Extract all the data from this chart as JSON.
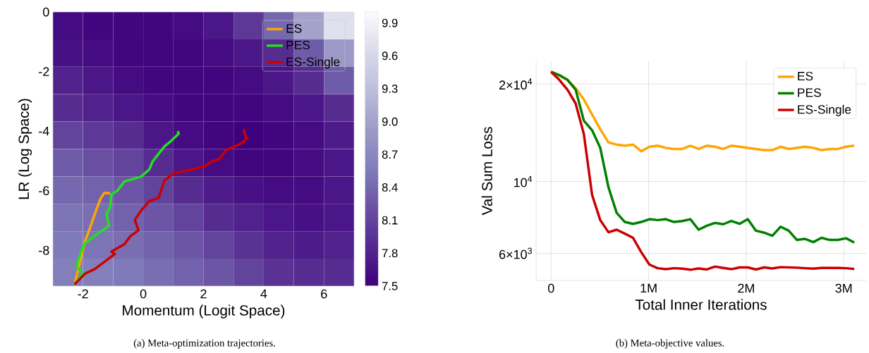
{
  "chart_data": [
    {
      "type": "heatmap",
      "categories": [
        null,
        null,
        null,
        null,
        null,
        null,
        null,
        null,
        null,
        null
      ],
      "y_categories": [
        null,
        null,
        null,
        null,
        null,
        null,
        null,
        null,
        null,
        null
      ],
      "cells": [
        [
          7.6,
          7.55,
          7.55,
          7.55,
          7.6,
          7.7,
          8.0,
          8.4,
          9.0,
          9.7
        ],
        [
          7.65,
          7.6,
          7.55,
          7.55,
          7.55,
          7.6,
          7.7,
          7.9,
          8.3,
          8.9
        ],
        [
          7.8,
          7.7,
          7.6,
          7.55,
          7.55,
          7.55,
          7.6,
          7.7,
          7.9,
          8.3
        ],
        [
          7.9,
          7.8,
          7.7,
          7.6,
          7.55,
          7.55,
          7.55,
          7.6,
          7.7,
          7.9
        ],
        [
          8.1,
          8.0,
          7.9,
          7.7,
          7.6,
          7.55,
          7.5,
          7.55,
          7.6,
          7.75
        ],
        [
          8.3,
          8.2,
          8.1,
          7.9,
          7.7,
          7.6,
          7.55,
          7.55,
          7.6,
          7.7
        ],
        [
          8.4,
          8.35,
          8.25,
          8.1,
          7.9,
          7.75,
          7.65,
          7.6,
          7.6,
          7.7
        ],
        [
          8.5,
          8.45,
          8.35,
          8.25,
          8.1,
          7.9,
          7.8,
          7.7,
          7.65,
          7.7
        ],
        [
          8.55,
          8.5,
          8.45,
          8.35,
          8.25,
          8.1,
          7.95,
          7.8,
          7.75,
          7.8
        ],
        [
          8.6,
          8.6,
          8.55,
          8.45,
          8.35,
          8.25,
          8.1,
          7.95,
          7.9,
          7.9
        ]
      ],
      "clim": [
        7.5,
        10.0
      ],
      "cticks": [
        7.5,
        7.8,
        8.1,
        8.4,
        8.7,
        {
          "value": 9.0,
          "label": "9.0"
        },
        9.3,
        9.6,
        9.9
      ],
      "tick_labels": false
    },
    {
      "type": "line",
      "xlabel": "Momentum (Logit Space)",
      "ylabel": "LR (Log Space)",
      "xlim": [
        -3,
        7
      ],
      "ylim": [
        -9.2,
        0
      ],
      "xticks": [
        -2,
        0,
        2,
        4,
        6
      ],
      "yticks": [
        -8,
        -6,
        -4,
        -2,
        0
      ],
      "series": [
        {
          "name": "ES",
          "color": "#ffa500",
          "x": [
            -2.28,
            -2.12,
            -1.93,
            -1.73,
            -1.57,
            -1.42,
            -1.3,
            -1.1
          ],
          "values": [
            -9.14,
            -8.47,
            -7.69,
            -7.14,
            -6.67,
            -6.27,
            -6.08,
            -6.08
          ]
        },
        {
          "name": "PES",
          "color": "#22e022",
          "x": [
            -2.28,
            -2.0,
            -2.22,
            -2.08,
            -1.97,
            -1.69,
            -1.14,
            -1.22,
            -1.1,
            -1.06,
            -0.86,
            -0.63,
            -0.08,
            0.2,
            0.31,
            0.55,
            0.71,
            0.9,
            1.06,
            1.18,
            1.14
          ],
          "values": [
            -9.14,
            -8.75,
            -8.55,
            -8.08,
            -7.8,
            -7.57,
            -7.18,
            -6.78,
            -6.55,
            -6.12,
            -6.0,
            -5.69,
            -5.53,
            -5.29,
            -5.02,
            -4.71,
            -4.51,
            -4.35,
            -4.2,
            -4.08,
            -4.0
          ]
        },
        {
          "name": "ES-Single",
          "color": "#cc0000",
          "x": [
            -2.28,
            -1.93,
            -1.61,
            -0.94,
            -1.06,
            -0.63,
            -0.43,
            -0.16,
            -0.28,
            -0.04,
            0.2,
            0.51,
            0.71,
            1.02,
            1.42,
            2.04,
            2.28,
            2.52,
            2.75,
            3.14,
            3.34,
            3.42,
            3.34,
            3.38,
            3.46
          ],
          "values": [
            -9.14,
            -8.78,
            -8.63,
            -8.12,
            -8.04,
            -7.8,
            -7.53,
            -7.33,
            -6.98,
            -6.63,
            -6.35,
            -6.24,
            -5.65,
            -5.41,
            -5.33,
            -5.18,
            -5.02,
            -4.94,
            -4.63,
            -4.47,
            -4.35,
            -4.24,
            -3.96,
            -4.12,
            -4.27
          ]
        }
      ],
      "legend": "top right",
      "annotations": [
        "(a) Meta-optimization trajectories."
      ]
    },
    {
      "type": "line",
      "xlabel": "Total Inner Iterations",
      "ylabel": "Val Sum Loss",
      "x": [
        0,
        84000,
        168000,
        252000,
        336000,
        420000,
        504000,
        588000,
        672000,
        756000,
        840000,
        924000,
        1008000,
        1092000,
        1176000,
        1260000,
        1344000,
        1428000,
        1512000,
        1596000,
        1680000,
        1764000,
        1848000,
        1932000,
        2016000,
        2100000,
        2184000,
        2268000,
        2352000,
        2436000,
        2520000,
        2604000,
        2688000,
        2772000,
        2856000,
        2940000,
        3024000,
        3108000
      ],
      "series": [
        {
          "name": "ES",
          "color": "#ffa500",
          "values": [
            21800,
            21200,
            20600,
            19400,
            17900,
            16100,
            14500,
            13200,
            13000,
            12900,
            13000,
            12400,
            12800,
            12900,
            12700,
            12600,
            12600,
            12900,
            12600,
            12900,
            12800,
            12600,
            12900,
            12800,
            12700,
            12600,
            12500,
            12500,
            12800,
            12600,
            12700,
            12800,
            12700,
            12500,
            12600,
            12600,
            12800,
            12900
          ]
        },
        {
          "name": "PES",
          "color": "#008000",
          "values": [
            21800,
            21300,
            20600,
            19200,
            15400,
            14400,
            12700,
            9600,
            8000,
            7500,
            7400,
            7500,
            7650,
            7600,
            7650,
            7500,
            7550,
            7650,
            7100,
            7300,
            7450,
            7380,
            7550,
            7400,
            7650,
            7050,
            6950,
            6800,
            7250,
            7050,
            6600,
            6650,
            6500,
            6700,
            6600,
            6600,
            6680,
            6480
          ]
        },
        {
          "name": "ES-Single",
          "color": "#cc0000",
          "values": [
            21800,
            20600,
            19200,
            17400,
            14000,
            9100,
            7600,
            6970,
            7100,
            6900,
            6700,
            6050,
            5540,
            5400,
            5360,
            5400,
            5380,
            5340,
            5390,
            5350,
            5460,
            5410,
            5360,
            5430,
            5430,
            5350,
            5430,
            5390,
            5440,
            5430,
            5420,
            5400,
            5380,
            5410,
            5410,
            5410,
            5400,
            5370
          ]
        }
      ],
      "xlim": [
        -154000,
        3230000
      ],
      "ylim": [
        4950,
        23500
      ],
      "xticks": [
        0,
        {
          "value": 1000000,
          "label": "1M"
        },
        {
          "value": 2000000,
          "label": "2M"
        },
        {
          "value": 3000000,
          "label": "3M"
        }
      ],
      "yticks": [
        {
          "value": 6000,
          "label": "6×10$^{3}$"
        },
        {
          "value": 10000,
          "label": "10$^{4}$"
        },
        {
          "value": 20000,
          "label": "2×10$^{4}$"
        }
      ],
      "log": "y",
      "grid": true,
      "legend": "top right",
      "annotations": [
        "(b) Meta-objective values."
      ]
    }
  ]
}
